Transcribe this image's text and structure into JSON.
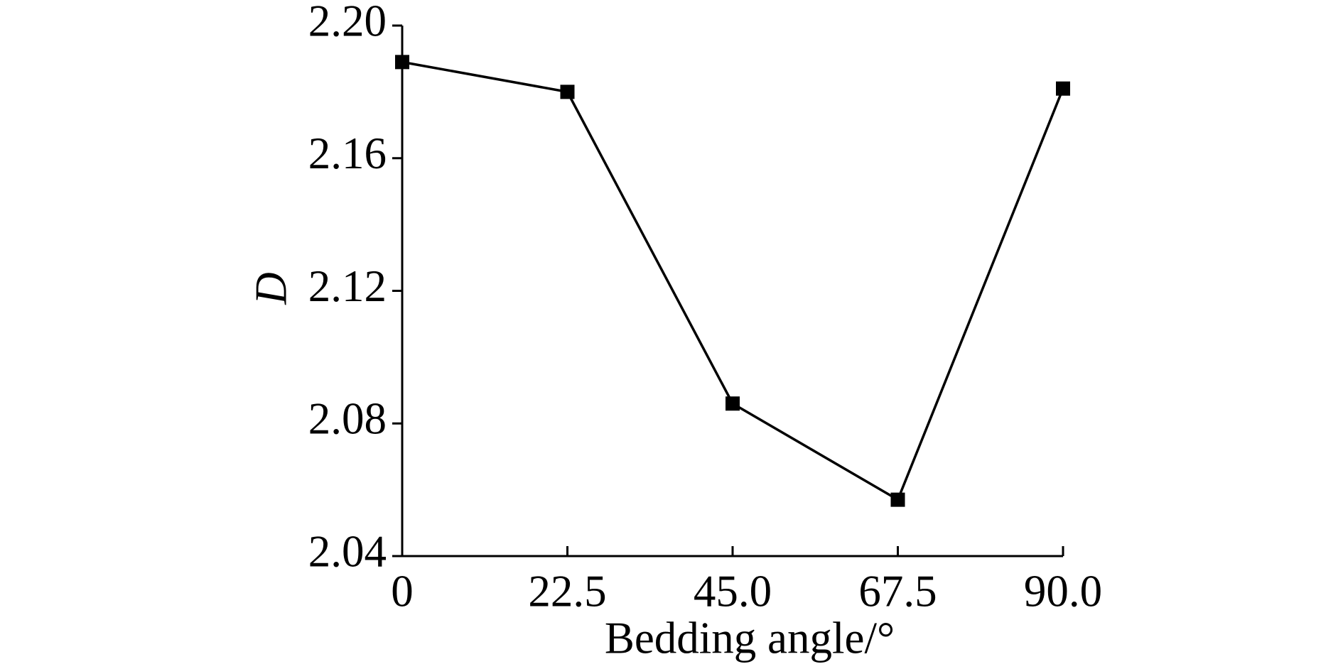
{
  "chart_data": {
    "type": "line",
    "x_label": "Bedding angle/°",
    "y_label": "D",
    "x": [
      0,
      22.5,
      45,
      67.5,
      90
    ],
    "series": [
      {
        "name": "D",
        "color": "#000000",
        "values": [
          2.189,
          2.18,
          2.086,
          2.057,
          2.181
        ]
      }
    ],
    "xlim": [
      0,
      90
    ],
    "xticks": [
      0,
      22.5,
      {
        "value": 45,
        "label": "45.0"
      },
      67.5,
      {
        "value": 90,
        "label": "90.0"
      }
    ],
    "ylim": [
      2.04,
      2.2
    ],
    "yticks": [
      2.04,
      2.08,
      2.12,
      2.16,
      {
        "value": 2.2,
        "label": "2.20"
      }
    ],
    "grid": false
  }
}
